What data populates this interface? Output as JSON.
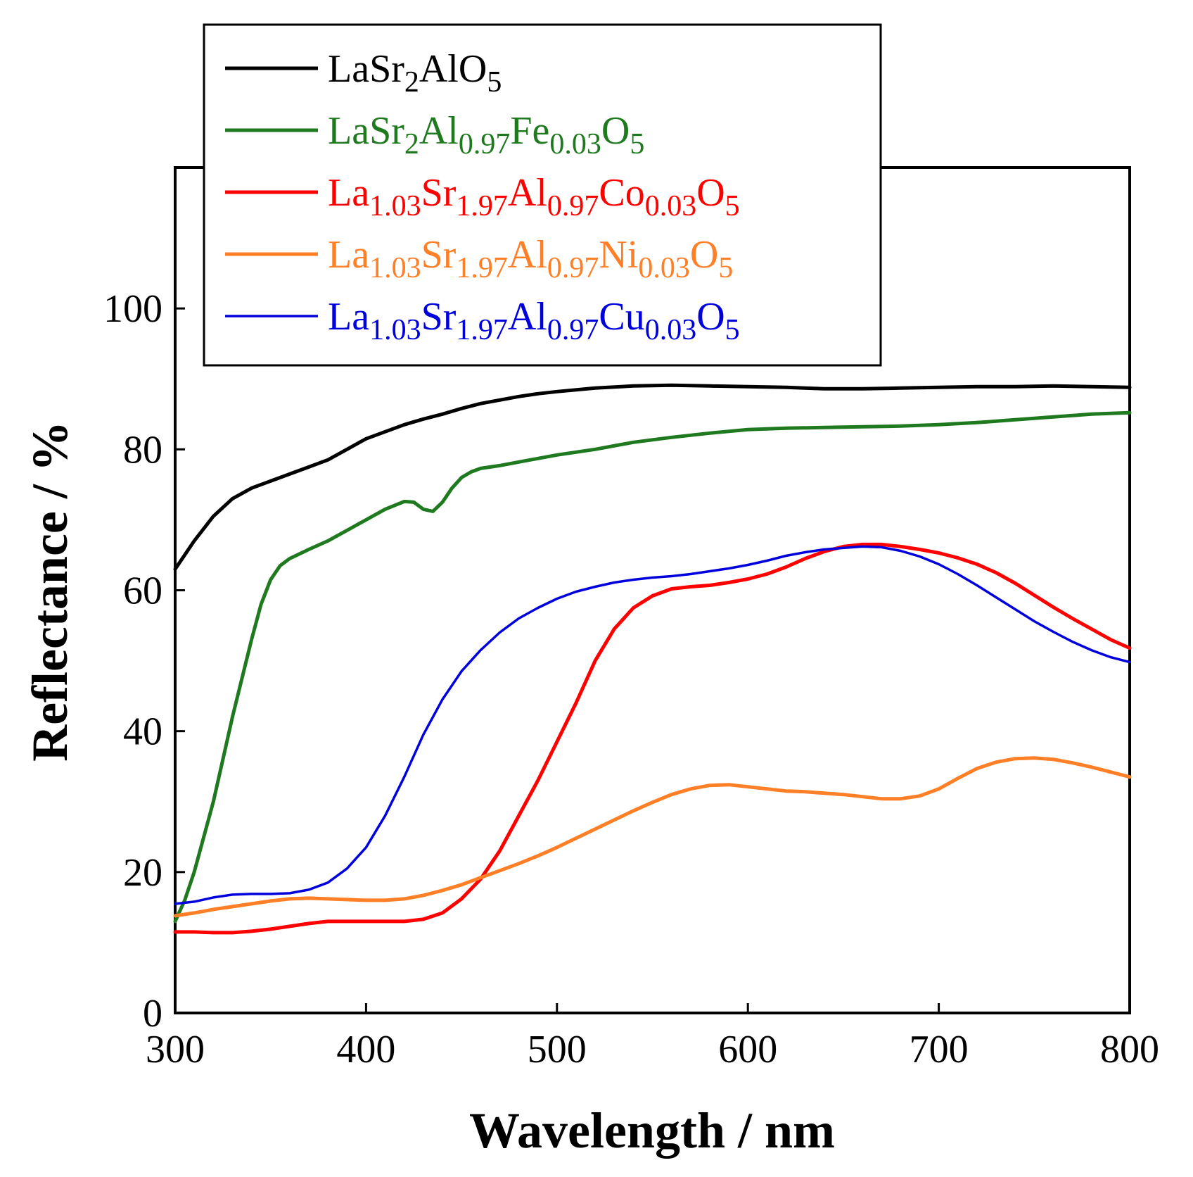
{
  "chart_data": {
    "type": "line",
    "title": "",
    "xlabel": "Wavelength / nm",
    "ylabel": "Reflectance / %",
    "xlim": [
      300,
      800
    ],
    "ylim": [
      0,
      120
    ],
    "x_ticks": [
      {
        "value": 300,
        "label": "300"
      },
      {
        "value": 400,
        "label": "400"
      },
      {
        "value": 500,
        "label": "500"
      },
      {
        "value": 600,
        "label": "600"
      },
      {
        "value": 700,
        "label": "700"
      },
      {
        "value": 800,
        "label": "800"
      }
    ],
    "y_ticks": [
      {
        "value": 0,
        "label": "0"
      },
      {
        "value": 20,
        "label": "20"
      },
      {
        "value": 40,
        "label": "40"
      },
      {
        "value": 60,
        "label": "60"
      },
      {
        "value": 80,
        "label": "80"
      },
      {
        "value": 100,
        "label": "100"
      }
    ],
    "grid": false,
    "legend_position": "top-center",
    "series": [
      {
        "name": "LaSr2AlO5",
        "label_parts": [
          {
            "text": "LaSr",
            "sub": false
          },
          {
            "text": "2",
            "sub": true
          },
          {
            "text": "AlO",
            "sub": false
          },
          {
            "text": "5",
            "sub": true
          }
        ],
        "color": "#000000",
        "points": [
          [
            300,
            63
          ],
          [
            310,
            67
          ],
          [
            320,
            70.5
          ],
          [
            330,
            73
          ],
          [
            340,
            74.5
          ],
          [
            350,
            75.5
          ],
          [
            360,
            76.5
          ],
          [
            370,
            77.5
          ],
          [
            380,
            78.5
          ],
          [
            390,
            80
          ],
          [
            400,
            81.5
          ],
          [
            410,
            82.5
          ],
          [
            420,
            83.5
          ],
          [
            430,
            84.3
          ],
          [
            440,
            85
          ],
          [
            450,
            85.8
          ],
          [
            460,
            86.5
          ],
          [
            470,
            87
          ],
          [
            480,
            87.5
          ],
          [
            490,
            87.9
          ],
          [
            500,
            88.2
          ],
          [
            520,
            88.7
          ],
          [
            540,
            89
          ],
          [
            560,
            89.1
          ],
          [
            580,
            89
          ],
          [
            600,
            88.9
          ],
          [
            620,
            88.8
          ],
          [
            640,
            88.6
          ],
          [
            660,
            88.6
          ],
          [
            680,
            88.7
          ],
          [
            700,
            88.8
          ],
          [
            720,
            88.9
          ],
          [
            740,
            88.9
          ],
          [
            760,
            89
          ],
          [
            780,
            88.9
          ],
          [
            800,
            88.8
          ]
        ]
      },
      {
        "name": "LaSr2Al0.97Fe0.03O5",
        "label_parts": [
          {
            "text": "LaSr",
            "sub": false
          },
          {
            "text": "2",
            "sub": true
          },
          {
            "text": "Al",
            "sub": false
          },
          {
            "text": "0.97",
            "sub": true
          },
          {
            "text": "Fe",
            "sub": false
          },
          {
            "text": "0.03",
            "sub": true
          },
          {
            "text": "O",
            "sub": false
          },
          {
            "text": "5",
            "sub": true
          }
        ],
        "color": "#1f7a1f",
        "points": [
          [
            300,
            13
          ],
          [
            305,
            16
          ],
          [
            310,
            20
          ],
          [
            315,
            25
          ],
          [
            320,
            30
          ],
          [
            325,
            36
          ],
          [
            330,
            42
          ],
          [
            335,
            47.5
          ],
          [
            340,
            53
          ],
          [
            345,
            58
          ],
          [
            350,
            61.5
          ],
          [
            355,
            63.5
          ],
          [
            360,
            64.5
          ],
          [
            370,
            65.8
          ],
          [
            380,
            67
          ],
          [
            390,
            68.5
          ],
          [
            400,
            70
          ],
          [
            410,
            71.5
          ],
          [
            420,
            72.6
          ],
          [
            425,
            72.5
          ],
          [
            430,
            71.5
          ],
          [
            435,
            71.2
          ],
          [
            440,
            72.5
          ],
          [
            445,
            74.5
          ],
          [
            450,
            76
          ],
          [
            455,
            76.8
          ],
          [
            460,
            77.3
          ],
          [
            470,
            77.7
          ],
          [
            480,
            78.2
          ],
          [
            490,
            78.7
          ],
          [
            500,
            79.2
          ],
          [
            520,
            80
          ],
          [
            540,
            81
          ],
          [
            560,
            81.7
          ],
          [
            580,
            82.3
          ],
          [
            600,
            82.8
          ],
          [
            620,
            83
          ],
          [
            640,
            83.1
          ],
          [
            660,
            83.2
          ],
          [
            680,
            83.3
          ],
          [
            700,
            83.5
          ],
          [
            720,
            83.8
          ],
          [
            740,
            84.2
          ],
          [
            760,
            84.6
          ],
          [
            780,
            85
          ],
          [
            800,
            85.2
          ]
        ]
      },
      {
        "name": "La1.03Sr1.97Al0.97Co0.03O5",
        "label_parts": [
          {
            "text": "La",
            "sub": false
          },
          {
            "text": "1.03",
            "sub": true
          },
          {
            "text": "Sr",
            "sub": false
          },
          {
            "text": "1.97",
            "sub": true
          },
          {
            "text": "Al",
            "sub": false
          },
          {
            "text": "0.97",
            "sub": true
          },
          {
            "text": "Co",
            "sub": false
          },
          {
            "text": "0.03",
            "sub": true
          },
          {
            "text": "O",
            "sub": false
          },
          {
            "text": "5",
            "sub": true
          }
        ],
        "color": "#ff0000",
        "points": [
          [
            300,
            11.5
          ],
          [
            310,
            11.5
          ],
          [
            320,
            11.4
          ],
          [
            330,
            11.4
          ],
          [
            340,
            11.6
          ],
          [
            350,
            11.9
          ],
          [
            360,
            12.3
          ],
          [
            370,
            12.7
          ],
          [
            380,
            13
          ],
          [
            390,
            13
          ],
          [
            400,
            13
          ],
          [
            410,
            13
          ],
          [
            420,
            13
          ],
          [
            430,
            13.3
          ],
          [
            440,
            14.2
          ],
          [
            450,
            16.2
          ],
          [
            460,
            19
          ],
          [
            470,
            23
          ],
          [
            480,
            28
          ],
          [
            490,
            33
          ],
          [
            500,
            38.5
          ],
          [
            510,
            44
          ],
          [
            520,
            50
          ],
          [
            530,
            54.5
          ],
          [
            540,
            57.5
          ],
          [
            550,
            59.2
          ],
          [
            560,
            60.2
          ],
          [
            570,
            60.5
          ],
          [
            580,
            60.7
          ],
          [
            590,
            61.1
          ],
          [
            600,
            61.6
          ],
          [
            610,
            62.3
          ],
          [
            620,
            63.3
          ],
          [
            630,
            64.5
          ],
          [
            640,
            65.5
          ],
          [
            650,
            66.2
          ],
          [
            660,
            66.5
          ],
          [
            670,
            66.5
          ],
          [
            680,
            66.2
          ],
          [
            690,
            65.8
          ],
          [
            700,
            65.3
          ],
          [
            710,
            64.6
          ],
          [
            720,
            63.7
          ],
          [
            730,
            62.5
          ],
          [
            740,
            61
          ],
          [
            750,
            59.3
          ],
          [
            760,
            57.6
          ],
          [
            770,
            56
          ],
          [
            780,
            54.5
          ],
          [
            790,
            53
          ],
          [
            800,
            51.8
          ]
        ]
      },
      {
        "name": "La1.03Sr1.97Al0.97Ni0.03O5",
        "label_parts": [
          {
            "text": "La",
            "sub": false
          },
          {
            "text": "1.03",
            "sub": true
          },
          {
            "text": "Sr",
            "sub": false
          },
          {
            "text": "1.97",
            "sub": true
          },
          {
            "text": "Al",
            "sub": false
          },
          {
            "text": "0.97",
            "sub": true
          },
          {
            "text": "Ni",
            "sub": false
          },
          {
            "text": "0.03",
            "sub": true
          },
          {
            "text": "O",
            "sub": false
          },
          {
            "text": "5",
            "sub": true
          }
        ],
        "color": "#ff7f27",
        "points": [
          [
            300,
            13.8
          ],
          [
            310,
            14.2
          ],
          [
            320,
            14.7
          ],
          [
            330,
            15.1
          ],
          [
            340,
            15.5
          ],
          [
            350,
            15.9
          ],
          [
            360,
            16.2
          ],
          [
            370,
            16.3
          ],
          [
            380,
            16.2
          ],
          [
            390,
            16.1
          ],
          [
            400,
            16
          ],
          [
            410,
            16
          ],
          [
            420,
            16.2
          ],
          [
            430,
            16.7
          ],
          [
            440,
            17.4
          ],
          [
            450,
            18.2
          ],
          [
            460,
            19.2
          ],
          [
            470,
            20.2
          ],
          [
            480,
            21.2
          ],
          [
            490,
            22.3
          ],
          [
            500,
            23.5
          ],
          [
            510,
            24.8
          ],
          [
            520,
            26.1
          ],
          [
            530,
            27.4
          ],
          [
            540,
            28.7
          ],
          [
            550,
            29.9
          ],
          [
            560,
            31
          ],
          [
            570,
            31.8
          ],
          [
            580,
            32.3
          ],
          [
            590,
            32.4
          ],
          [
            600,
            32.1
          ],
          [
            610,
            31.8
          ],
          [
            620,
            31.5
          ],
          [
            630,
            31.4
          ],
          [
            640,
            31.2
          ],
          [
            650,
            31
          ],
          [
            660,
            30.7
          ],
          [
            670,
            30.4
          ],
          [
            680,
            30.4
          ],
          [
            690,
            30.8
          ],
          [
            700,
            31.8
          ],
          [
            710,
            33.3
          ],
          [
            720,
            34.7
          ],
          [
            730,
            35.6
          ],
          [
            740,
            36.1
          ],
          [
            750,
            36.2
          ],
          [
            760,
            36
          ],
          [
            770,
            35.5
          ],
          [
            780,
            34.9
          ],
          [
            790,
            34.2
          ],
          [
            800,
            33.5
          ]
        ]
      },
      {
        "name": "La1.03Sr1.97Al0.97Cu0.03O5",
        "label_parts": [
          {
            "text": "La",
            "sub": false
          },
          {
            "text": "1.03",
            "sub": true
          },
          {
            "text": "Sr",
            "sub": false
          },
          {
            "text": "1.97",
            "sub": true
          },
          {
            "text": "Al",
            "sub": false
          },
          {
            "text": "0.97",
            "sub": true
          },
          {
            "text": "Cu",
            "sub": false
          },
          {
            "text": "0.03",
            "sub": true
          },
          {
            "text": "O",
            "sub": false
          },
          {
            "text": "5",
            "sub": true
          }
        ],
        "color": "#0000dd",
        "points": [
          [
            300,
            15.5
          ],
          [
            310,
            15.8
          ],
          [
            320,
            16.4
          ],
          [
            330,
            16.8
          ],
          [
            340,
            16.9
          ],
          [
            350,
            16.9
          ],
          [
            360,
            17
          ],
          [
            370,
            17.5
          ],
          [
            380,
            18.5
          ],
          [
            390,
            20.5
          ],
          [
            400,
            23.5
          ],
          [
            410,
            28
          ],
          [
            420,
            33.5
          ],
          [
            430,
            39.5
          ],
          [
            440,
            44.5
          ],
          [
            450,
            48.5
          ],
          [
            460,
            51.5
          ],
          [
            470,
            54
          ],
          [
            480,
            56
          ],
          [
            490,
            57.5
          ],
          [
            500,
            58.8
          ],
          [
            510,
            59.8
          ],
          [
            520,
            60.5
          ],
          [
            530,
            61.1
          ],
          [
            540,
            61.5
          ],
          [
            550,
            61.8
          ],
          [
            560,
            62
          ],
          [
            570,
            62.3
          ],
          [
            580,
            62.7
          ],
          [
            590,
            63.1
          ],
          [
            600,
            63.6
          ],
          [
            610,
            64.2
          ],
          [
            620,
            64.9
          ],
          [
            630,
            65.4
          ],
          [
            640,
            65.8
          ],
          [
            650,
            66
          ],
          [
            660,
            66.2
          ],
          [
            670,
            66.1
          ],
          [
            680,
            65.6
          ],
          [
            690,
            64.8
          ],
          [
            700,
            63.7
          ],
          [
            710,
            62.3
          ],
          [
            720,
            60.7
          ],
          [
            730,
            59
          ],
          [
            740,
            57.3
          ],
          [
            750,
            55.6
          ],
          [
            760,
            54.1
          ],
          [
            770,
            52.7
          ],
          [
            780,
            51.5
          ],
          [
            790,
            50.5
          ],
          [
            800,
            49.8
          ]
        ]
      }
    ]
  }
}
